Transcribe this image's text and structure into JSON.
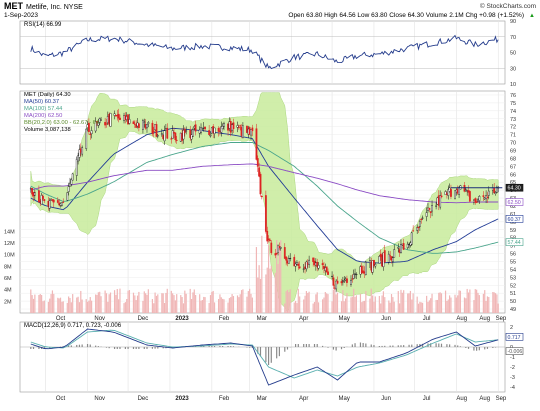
{
  "header": {
    "symbol": "MET",
    "company": "Metlife, Inc.  NYSE",
    "date": "1-Sep-2023",
    "watermark": "© StockCharts.com",
    "ohlc_text": "Open 63.80  High 64.56  Low 63.80  Close 64.30  Volume 2.1M  Chg +0.98 (+1.52%)",
    "chg_arrow": "▲"
  },
  "panels": {
    "rsi": {
      "legend": "RSI(14) 66.99",
      "ticks": [
        "90",
        "70",
        "50",
        "30",
        "10"
      ]
    },
    "price": {
      "legend": [
        "MET (Daily) 64.30",
        "MA(50) 60.37",
        "MA(100) 57.44",
        "MA(200) 62.50",
        "BB(20,2.0) 63.00 - 62.67 - 64.",
        "Volume 3,087,138"
      ],
      "price_ticks": [
        "76",
        "75",
        "74",
        "73",
        "72",
        "71",
        "70",
        "69",
        "68",
        "67",
        "66",
        "65",
        "64",
        "63",
        "62",
        "61",
        "60",
        "59",
        "58",
        "57",
        "56",
        "55",
        "54",
        "53",
        "52",
        "51",
        "50",
        "49"
      ],
      "volume_ticks": [
        "14M",
        "12M",
        "10M",
        "8M",
        "6M",
        "4M",
        "2M"
      ],
      "last_tags": [
        "64.30",
        "62.50",
        "60.37",
        "57.44"
      ]
    },
    "macd": {
      "legend": "MACD(12,26,9) 0.717, 0.723, -0.006",
      "ticks": [
        "2",
        "1",
        "0",
        "-1",
        "-2",
        "-3",
        "-4"
      ],
      "last_tags": [
        "0.717",
        "-0.006"
      ]
    }
  },
  "x_axis": {
    "labels": [
      "Oct",
      "Nov",
      "Dec",
      "2023",
      "Feb",
      "Mar",
      "Apr",
      "May",
      "Jun",
      "Jul",
      "Aug",
      "Aug",
      "Sep"
    ]
  },
  "colors": {
    "up": "#111111",
    "down": "#dd2222",
    "bb_fill": "#c8ec9c",
    "ma50": "#223c96",
    "ma100": "#4aa58c",
    "ma200": "#8a4bc4",
    "volume": "#f0b6b6",
    "rsi": "#243c8c",
    "macd": "#243c8c",
    "signal": "#5bb0b0"
  },
  "chart_data": {
    "type": "line",
    "title": "MET Metlife, Inc. NYSE",
    "x": [
      "2022-09-20",
      "2022-10-01",
      "2022-10-15",
      "2022-11-01",
      "2022-11-20",
      "2022-12-15",
      "2023-01-03",
      "2023-01-25",
      "2023-02-15",
      "2023-03-03",
      "2023-03-15",
      "2023-04-03",
      "2023-04-20",
      "2023-05-05",
      "2023-05-20",
      "2023-06-05",
      "2023-06-25",
      "2023-07-15",
      "2023-08-01",
      "2023-08-15",
      "2023-09-01"
    ],
    "series": [
      {
        "name": "MET (Daily)",
        "values": [
          64.5,
          62.0,
          62.5,
          71.5,
          73.2,
          72.0,
          70.8,
          71.5,
          72.0,
          71.0,
          57.0,
          55.0,
          54.5,
          52.0,
          54.0,
          55.0,
          57.0,
          62.0,
          64.5,
          62.5,
          64.3
        ]
      },
      {
        "name": "MA(50)",
        "values": [
          63.0,
          62.0,
          61.5,
          65.0,
          68.5,
          71.0,
          71.8,
          71.5,
          71.0,
          70.5,
          67.0,
          63.0,
          59.5,
          56.5,
          55.0,
          54.8,
          55.0,
          56.5,
          57.5,
          59.0,
          60.37
        ]
      },
      {
        "name": "MA(100)",
        "values": [
          64.5,
          63.5,
          62.5,
          63.5,
          65.0,
          67.5,
          68.5,
          69.5,
          70.0,
          70.0,
          69.0,
          67.0,
          64.5,
          62.0,
          60.0,
          58.0,
          56.5,
          56.0,
          56.2,
          56.7,
          57.44
        ]
      },
      {
        "name": "MA(200)",
        "values": [
          64.0,
          64.5,
          64.5,
          65.0,
          65.8,
          66.5,
          66.5,
          67.0,
          67.2,
          67.3,
          67.0,
          66.2,
          65.5,
          64.8,
          64.0,
          63.3,
          62.8,
          62.5,
          62.4,
          62.5,
          62.5
        ]
      }
    ],
    "resistance_level": 64.3,
    "ylim": [
      48.5,
      76.5
    ],
    "volume_ylim": [
      0,
      16
    ],
    "rsi_ylim": [
      10,
      90
    ],
    "rsi_values": [
      55,
      45,
      50,
      66,
      68,
      60,
      55,
      58,
      56,
      53,
      30,
      44,
      48,
      38,
      46,
      48,
      55,
      62,
      68,
      60,
      66.99
    ],
    "macd": [
      0.3,
      -0.2,
      0.0,
      1.8,
      1.5,
      0.2,
      -0.1,
      0.2,
      0.4,
      0.1,
      -3.8,
      -2.8,
      -2.0,
      -3.3,
      -1.5,
      -1.5,
      -0.6,
      0.8,
      1.5,
      0.1,
      0.717
    ],
    "macd_signal": [
      0.5,
      0.0,
      -0.1,
      1.5,
      1.7,
      0.4,
      0.0,
      0.1,
      0.3,
      0.2,
      -2.0,
      -3.1,
      -2.3,
      -2.9,
      -2.0,
      -1.6,
      -0.8,
      0.4,
      1.3,
      0.5,
      0.723
    ],
    "macd_hist": [
      -0.2,
      -0.2,
      0.1,
      0.3,
      -0.2,
      -0.2,
      -0.1,
      0.1,
      0.1,
      -0.1,
      -1.8,
      0.3,
      0.3,
      -0.4,
      0.5,
      0.1,
      0.2,
      0.4,
      0.2,
      -0.4,
      -0.006
    ],
    "macd_ylim": [
      -4.5,
      2.5
    ],
    "grid": true
  }
}
